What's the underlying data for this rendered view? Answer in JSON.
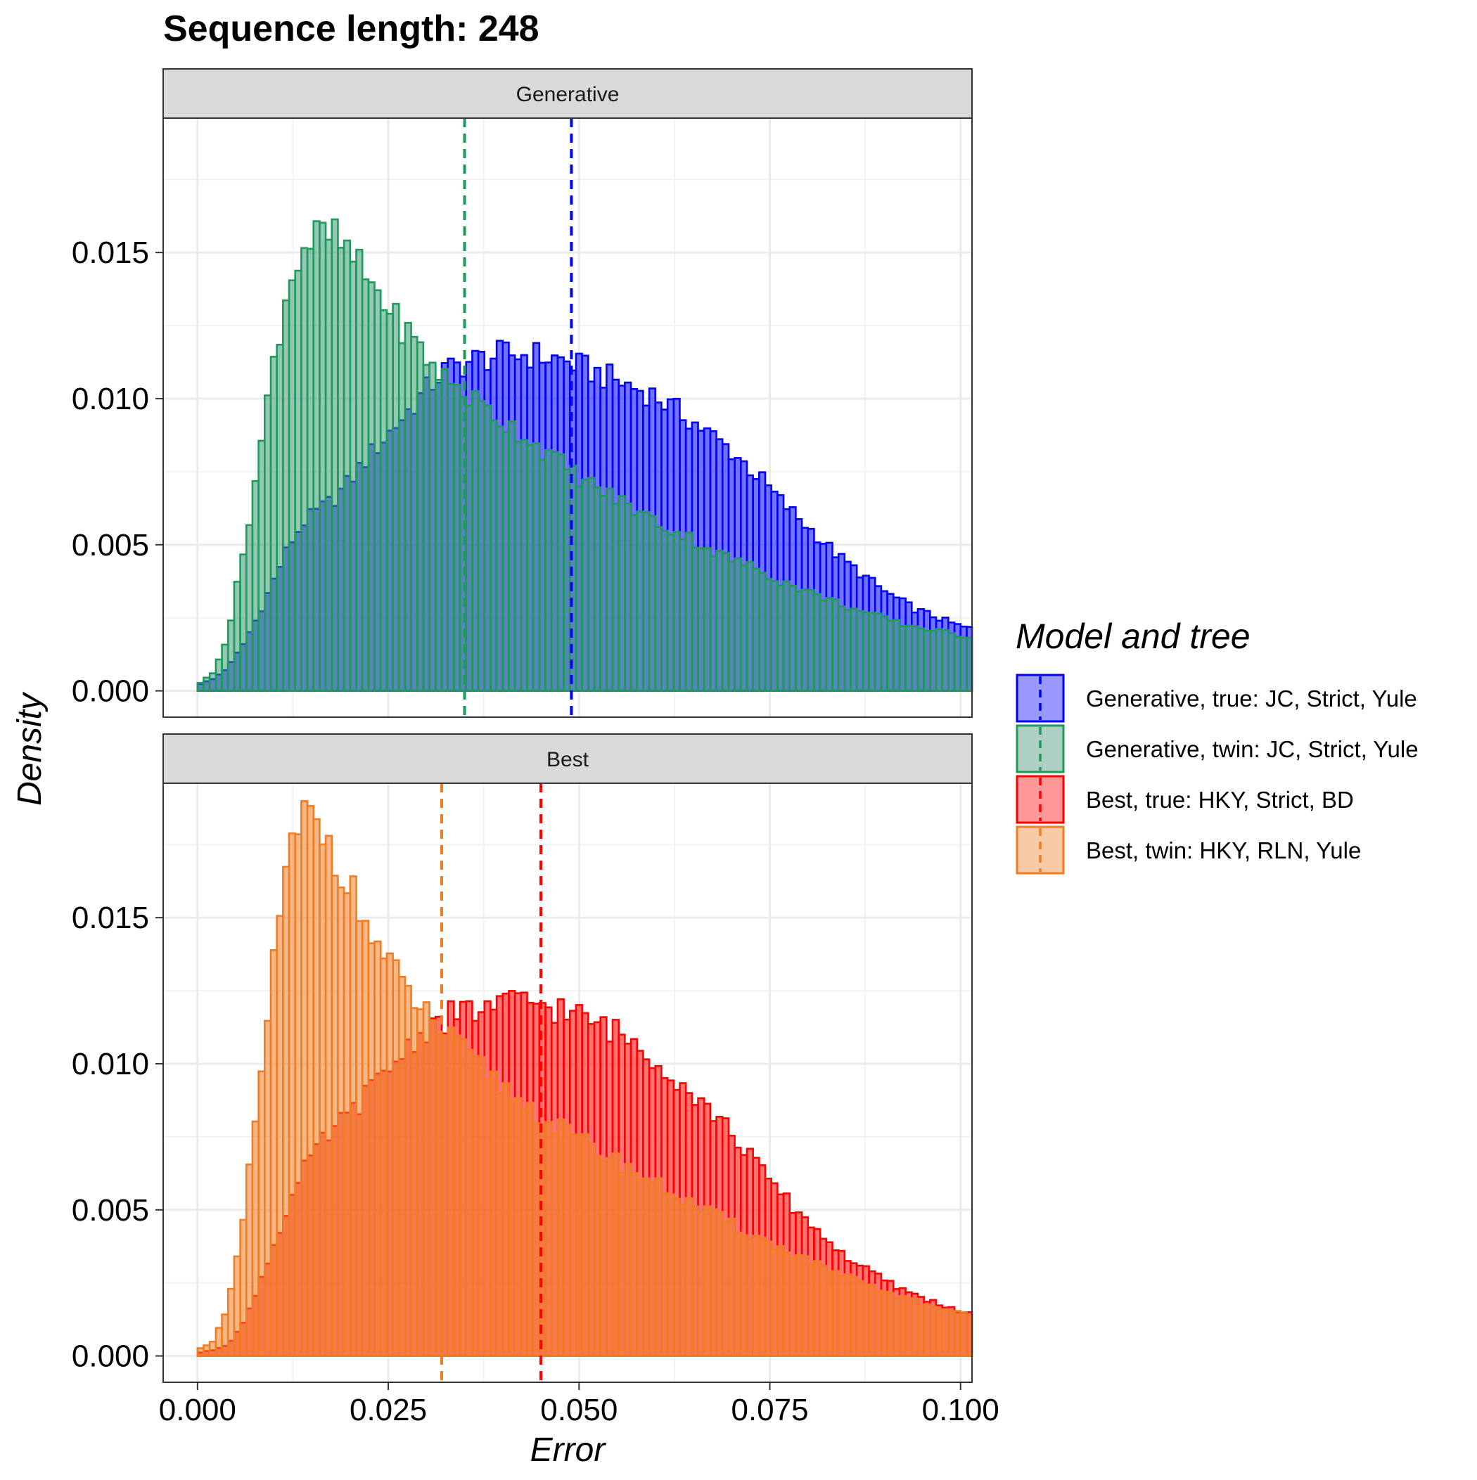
{
  "chart_data": {
    "type": "histogram",
    "title": "Sequence length: 248",
    "xlabel": "Error",
    "ylabel": "Density",
    "xlim": [
      -0.0045,
      0.1015
    ],
    "ylim": [
      -0.0009,
      0.0196
    ],
    "x_ticks": [
      "0.000",
      "0.025",
      "0.050",
      "0.075",
      "0.100"
    ],
    "x_tick_values": [
      0,
      0.025,
      0.05,
      0.075,
      0.1
    ],
    "y_ticks": [
      "0.000",
      "0.005",
      "0.010",
      "0.015"
    ],
    "y_tick_values": [
      0,
      0.005,
      0.01,
      0.015
    ],
    "grid": true,
    "legend": {
      "title": "Model and tree",
      "position": "right",
      "entries": [
        {
          "label": "Generative, true: JC, Strict, Yule",
          "color": "#0000FF",
          "fill": "#9999FF"
        },
        {
          "label": "Generative, twin: JC, Strict, Yule",
          "color": "#1E9A5A",
          "fill": "#AECFC4"
        },
        {
          "label": "Best, true: HKY, Strict, BD",
          "color": "#FF0000",
          "fill": "#FF9999"
        },
        {
          "label": "Best, twin: HKY, RLN, Yule",
          "color": "#F07D24",
          "fill": "#F8CBA6"
        }
      ]
    },
    "bin_width": 0.0008,
    "panels": [
      {
        "strip": "Generative",
        "series": [
          {
            "name": "Generative, true: JC, Strict, Yule",
            "color": "#0000FF",
            "fill": "#0000FF",
            "mean": 0.049,
            "y_by_x": [
              [
                0,
                0.0002
              ],
              [
                0.002,
                0.0004
              ],
              [
                0.004,
                0.0008
              ],
              [
                0.006,
                0.0016
              ],
              [
                0.008,
                0.0026
              ],
              [
                0.01,
                0.0038
              ],
              [
                0.012,
                0.005
              ],
              [
                0.014,
                0.0058
              ],
              [
                0.016,
                0.0062
              ],
              [
                0.018,
                0.0066
              ],
              [
                0.02,
                0.0072
              ],
              [
                0.022,
                0.0079
              ],
              [
                0.024,
                0.0085
              ],
              [
                0.026,
                0.0091
              ],
              [
                0.028,
                0.0097
              ],
              [
                0.03,
                0.0103
              ],
              [
                0.032,
                0.0109
              ],
              [
                0.034,
                0.0111
              ],
              [
                0.036,
                0.0113
              ],
              [
                0.038,
                0.0114
              ],
              [
                0.04,
                0.0115
              ],
              [
                0.042,
                0.0115
              ],
              [
                0.044,
                0.0115
              ],
              [
                0.046,
                0.0114
              ],
              [
                0.048,
                0.0113
              ],
              [
                0.05,
                0.0111
              ],
              [
                0.052,
                0.0109
              ],
              [
                0.054,
                0.0107
              ],
              [
                0.056,
                0.0105
              ],
              [
                0.058,
                0.0103
              ],
              [
                0.06,
                0.0101
              ],
              [
                0.062,
                0.0097
              ],
              [
                0.064,
                0.0094
              ],
              [
                0.066,
                0.009
              ],
              [
                0.068,
                0.0086
              ],
              [
                0.07,
                0.0082
              ],
              [
                0.072,
                0.0077
              ],
              [
                0.074,
                0.0072
              ],
              [
                0.076,
                0.0066
              ],
              [
                0.078,
                0.0061
              ],
              [
                0.08,
                0.0056
              ],
              [
                0.082,
                0.0051
              ],
              [
                0.084,
                0.0046
              ],
              [
                0.086,
                0.0042
              ],
              [
                0.088,
                0.0038
              ],
              [
                0.09,
                0.0034
              ],
              [
                0.092,
                0.0031
              ],
              [
                0.094,
                0.0028
              ],
              [
                0.096,
                0.0026
              ],
              [
                0.098,
                0.0024
              ],
              [
                0.1,
                0.0022
              ],
              [
                0.102,
                0.0021
              ]
            ]
          },
          {
            "name": "Generative, twin: JC, Strict, Yule",
            "color": "#1E9A5A",
            "fill": "#3C9A78",
            "mean": 0.035,
            "y_by_x": [
              [
                0,
                0.0002
              ],
              [
                0.002,
                0.0006
              ],
              [
                0.004,
                0.0019
              ],
              [
                0.006,
                0.0047
              ],
              [
                0.008,
                0.0078
              ],
              [
                0.01,
                0.0113
              ],
              [
                0.012,
                0.014
              ],
              [
                0.014,
                0.0152
              ],
              [
                0.016,
                0.0156
              ],
              [
                0.018,
                0.0155
              ],
              [
                0.02,
                0.0149
              ],
              [
                0.022,
                0.0142
              ],
              [
                0.024,
                0.0135
              ],
              [
                0.026,
                0.0127
              ],
              [
                0.028,
                0.0121
              ],
              [
                0.03,
                0.0114
              ],
              [
                0.032,
                0.0108
              ],
              [
                0.034,
                0.0104
              ],
              [
                0.036,
                0.01
              ],
              [
                0.038,
                0.0096
              ],
              [
                0.04,
                0.0092
              ],
              [
                0.042,
                0.0089
              ],
              [
                0.044,
                0.0085
              ],
              [
                0.046,
                0.0081
              ],
              [
                0.048,
                0.0077
              ],
              [
                0.05,
                0.0073
              ],
              [
                0.052,
                0.007
              ],
              [
                0.054,
                0.0067
              ],
              [
                0.056,
                0.0064
              ],
              [
                0.058,
                0.0061
              ],
              [
                0.06,
                0.0058
              ],
              [
                0.062,
                0.0055
              ],
              [
                0.064,
                0.0053
              ],
              [
                0.066,
                0.005
              ],
              [
                0.068,
                0.0047
              ],
              [
                0.07,
                0.0045
              ],
              [
                0.072,
                0.0043
              ],
              [
                0.074,
                0.0041
              ],
              [
                0.076,
                0.0038
              ],
              [
                0.078,
                0.0036
              ],
              [
                0.08,
                0.0034
              ],
              [
                0.082,
                0.0032
              ],
              [
                0.084,
                0.003
              ],
              [
                0.086,
                0.0028
              ],
              [
                0.088,
                0.0026
              ],
              [
                0.09,
                0.0025
              ],
              [
                0.092,
                0.0023
              ],
              [
                0.094,
                0.0022
              ],
              [
                0.096,
                0.0021
              ],
              [
                0.098,
                0.002
              ],
              [
                0.1,
                0.0019
              ],
              [
                0.102,
                0.0018
              ]
            ]
          }
        ]
      },
      {
        "strip": "Best",
        "series": [
          {
            "name": "Best, true: HKY, Strict, BD",
            "color": "#FF0000",
            "fill": "#FF0000",
            "mean": 0.045,
            "y_by_x": [
              [
                0,
                0.0001
              ],
              [
                0.002,
                0.0002
              ],
              [
                0.004,
                0.0004
              ],
              [
                0.006,
                0.0011
              ],
              [
                0.008,
                0.0024
              ],
              [
                0.01,
                0.0038
              ],
              [
                0.012,
                0.0052
              ],
              [
                0.014,
                0.0064
              ],
              [
                0.016,
                0.0072
              ],
              [
                0.018,
                0.0078
              ],
              [
                0.02,
                0.0083
              ],
              [
                0.022,
                0.0089
              ],
              [
                0.024,
                0.0095
              ],
              [
                0.026,
                0.0101
              ],
              [
                0.028,
                0.0107
              ],
              [
                0.03,
                0.0112
              ],
              [
                0.032,
                0.0115
              ],
              [
                0.034,
                0.0117
              ],
              [
                0.036,
                0.0118
              ],
              [
                0.038,
                0.0119
              ],
              [
                0.04,
                0.012
              ],
              [
                0.042,
                0.0121
              ],
              [
                0.044,
                0.0121
              ],
              [
                0.046,
                0.012
              ],
              [
                0.048,
                0.0118
              ],
              [
                0.05,
                0.0116
              ],
              [
                0.052,
                0.0114
              ],
              [
                0.054,
                0.0112
              ],
              [
                0.056,
                0.0109
              ],
              [
                0.058,
                0.0106
              ],
              [
                0.06,
                0.0102
              ],
              [
                0.062,
                0.0097
              ],
              [
                0.064,
                0.0092
              ],
              [
                0.066,
                0.0087
              ],
              [
                0.068,
                0.0082
              ],
              [
                0.07,
                0.0076
              ],
              [
                0.072,
                0.007
              ],
              [
                0.074,
                0.0063
              ],
              [
                0.076,
                0.0057
              ],
              [
                0.078,
                0.0051
              ],
              [
                0.08,
                0.0046
              ],
              [
                0.082,
                0.0041
              ],
              [
                0.084,
                0.0036
              ],
              [
                0.086,
                0.0032
              ],
              [
                0.088,
                0.0029
              ],
              [
                0.09,
                0.0026
              ],
              [
                0.092,
                0.0023
              ],
              [
                0.094,
                0.0021
              ],
              [
                0.096,
                0.0019
              ],
              [
                0.098,
                0.0017
              ],
              [
                0.1,
                0.0015
              ],
              [
                0.102,
                0.0014
              ]
            ]
          },
          {
            "name": "Best, twin: HKY, RLN, Yule",
            "color": "#F07D24",
            "fill": "#F07D24",
            "mean": 0.032,
            "y_by_x": [
              [
                0,
                0.0002
              ],
              [
                0.002,
                0.0005
              ],
              [
                0.004,
                0.0016
              ],
              [
                0.006,
                0.0046
              ],
              [
                0.008,
                0.0088
              ],
              [
                0.01,
                0.0135
              ],
              [
                0.012,
                0.017
              ],
              [
                0.014,
                0.0185
              ],
              [
                0.016,
                0.0182
              ],
              [
                0.018,
                0.0172
              ],
              [
                0.02,
                0.016
              ],
              [
                0.022,
                0.0148
              ],
              [
                0.024,
                0.0138
              ],
              [
                0.026,
                0.013
              ],
              [
                0.028,
                0.0123
              ],
              [
                0.03,
                0.0117
              ],
              [
                0.032,
                0.0111
              ],
              [
                0.034,
                0.0106
              ],
              [
                0.036,
                0.0101
              ],
              [
                0.038,
                0.0097
              ],
              [
                0.04,
                0.0092
              ],
              [
                0.042,
                0.0088
              ],
              [
                0.044,
                0.0084
              ],
              [
                0.046,
                0.008
              ],
              [
                0.048,
                0.0077
              ],
              [
                0.05,
                0.0074
              ],
              [
                0.052,
                0.0071
              ],
              [
                0.054,
                0.0068
              ],
              [
                0.056,
                0.0065
              ],
              [
                0.058,
                0.0062
              ],
              [
                0.06,
                0.0059
              ],
              [
                0.062,
                0.0056
              ],
              [
                0.064,
                0.0053
              ],
              [
                0.066,
                0.005
              ],
              [
                0.068,
                0.0048
              ],
              [
                0.07,
                0.0045
              ],
              [
                0.072,
                0.0042
              ],
              [
                0.074,
                0.004
              ],
              [
                0.076,
                0.0037
              ],
              [
                0.078,
                0.0035
              ],
              [
                0.08,
                0.0033
              ],
              [
                0.082,
                0.003
              ],
              [
                0.084,
                0.0028
              ],
              [
                0.086,
                0.0026
              ],
              [
                0.088,
                0.0024
              ],
              [
                0.09,
                0.0022
              ],
              [
                0.092,
                0.002
              ],
              [
                0.094,
                0.0019
              ],
              [
                0.096,
                0.0017
              ],
              [
                0.098,
                0.0016
              ],
              [
                0.1,
                0.0015
              ],
              [
                0.102,
                0.0014
              ]
            ]
          }
        ]
      }
    ]
  }
}
